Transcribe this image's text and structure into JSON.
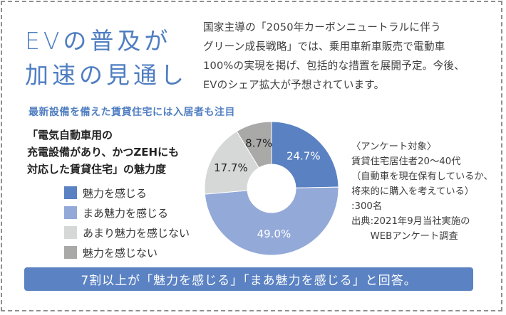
{
  "header": {
    "title_lines": [
      "EVの普及が",
      "加速の見通し"
    ],
    "intro_lines": [
      "国家主導の「2050年カーボンニュートラルに伴う",
      "グリーン成長戦略」では、乗用車新車販売で電動車",
      "100%の実現を掲げ、包括的な措置を展開予定。今後、",
      "EVのシェア拡大が予想されています。"
    ]
  },
  "subheading": "最新設備を備えた賃貸住宅には入居者も注目",
  "chart_title_lines": [
    "「電気自動車用の",
    "充電設備があり、かつZEHにも",
    "対応した賃貸住宅」の魅力度"
  ],
  "legend": [
    {
      "label": "魅力を感じる",
      "color": "#5a81c2"
    },
    {
      "label": "まあ魅力を感じる",
      "color": "#93a9d8"
    },
    {
      "label": "あまり魅力を感じない",
      "color": "#d6d7d7"
    },
    {
      "label": "魅力を感じない",
      "color": "#a9a9a8"
    }
  ],
  "survey": {
    "lines": [
      "〈アンケート対象〉",
      "賃貸住宅居住者20～40代",
      "（自動車を現在保有しているか、",
      "将来的に購入を考えている）",
      ":300名",
      "出典:2021年9月当社実施の",
      "　　WEBアンケート調査"
    ]
  },
  "banner": "7割以上が「魅力を感じる」「まあ魅力を感じる」と回答。",
  "chart_data": {
    "type": "pie",
    "subtype": "donut",
    "title": "「電気自動車用の充電設備があり、かつZEHにも対応した賃貸住宅」の魅力度",
    "categories": [
      "魅力を感じる",
      "まあ魅力を感じる",
      "あまり魅力を感じない",
      "魅力を感じない"
    ],
    "values": [
      24.7,
      49.0,
      17.7,
      8.7
    ],
    "labels": [
      "24.7%",
      "49.0%",
      "17.7%",
      "8.7%"
    ],
    "colors": [
      "#5a81c2",
      "#93a9d8",
      "#d6d7d7",
      "#a9a9a8"
    ],
    "label_colors": [
      "#ffffff",
      "#ffffff",
      "#222222",
      "#222222"
    ],
    "legend_position": "left",
    "start_angle": "12 o'clock, clockwise"
  }
}
